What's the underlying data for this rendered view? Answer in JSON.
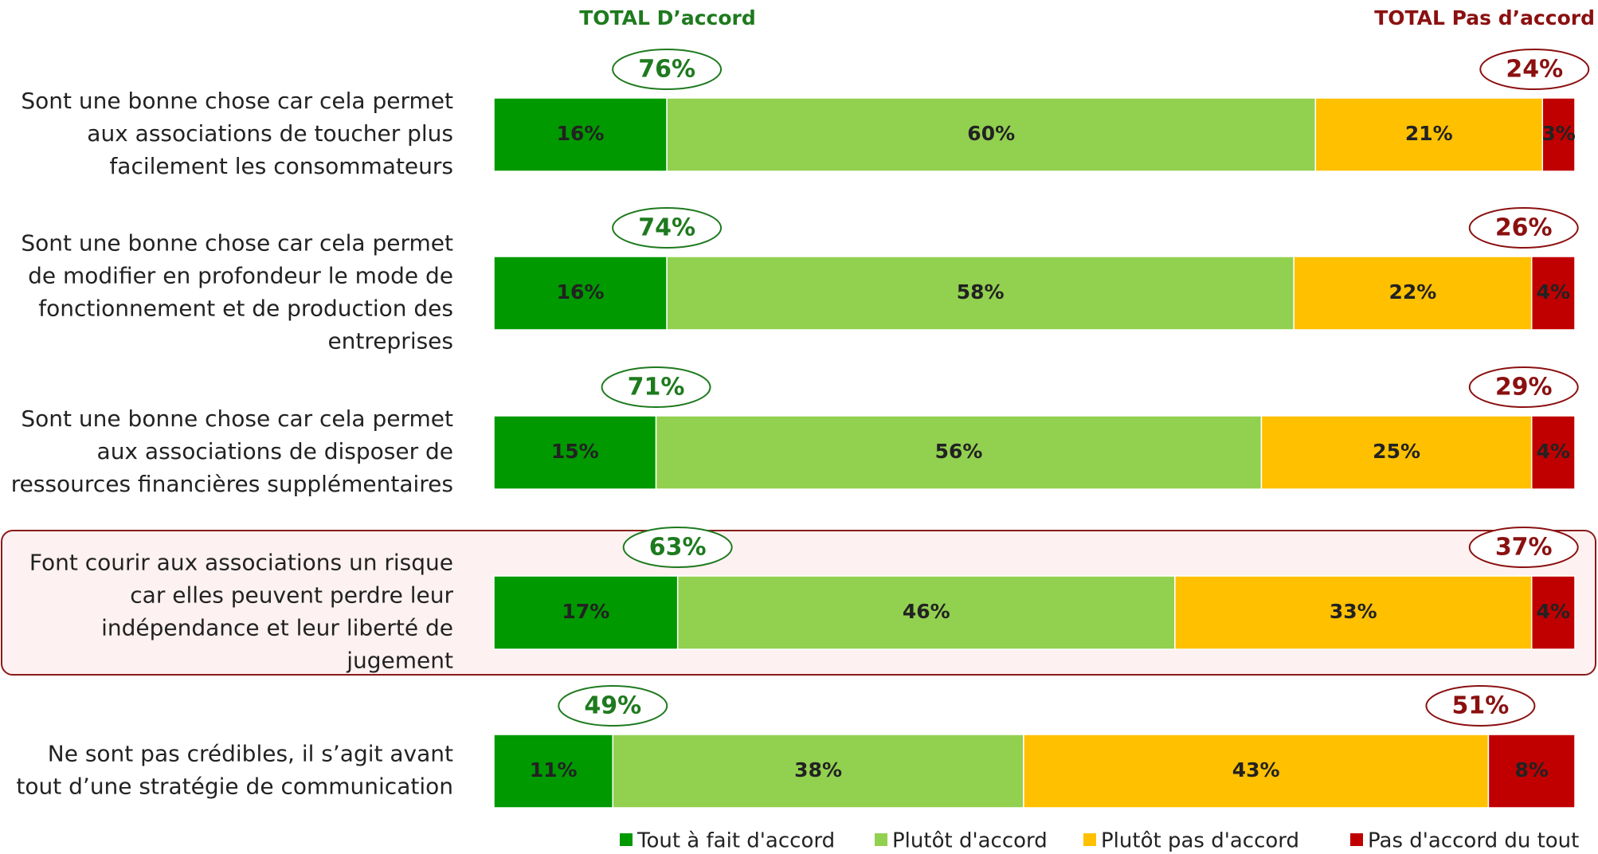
{
  "chart_data": {
    "type": "stacked-bar-horizontal",
    "agree_header": "TOTAL D’accord",
    "disagree_header": "TOTAL Pas d’accord",
    "categories": [
      [
        "Sont une bonne chose car cela permet",
        "aux associations de toucher plus",
        "facilement les consommateurs"
      ],
      [
        "Sont une bonne chose car cela permet",
        "de modifier en profondeur le mode de",
        "fonctionnement et de production des",
        "entreprises"
      ],
      [
        "Sont une bonne chose car cela permet",
        "aux associations de disposer de",
        "ressources financières supplémentaires"
      ],
      [
        "Font courir aux associations un risque",
        "car elles peuvent perdre leur",
        "indépendance et leur liberté de",
        "jugement"
      ],
      [
        "Ne sont pas crédibles, il s’agit avant",
        "tout d’une stratégie de communication"
      ]
    ],
    "series": [
      {
        "name": "Tout à fait d'accord",
        "color": "#009900",
        "values": [
          16,
          16,
          15,
          17,
          11
        ],
        "value_labels": [
          "16%",
          "16%",
          "15%",
          "17%",
          "11%"
        ]
      },
      {
        "name": "Plutôt d'accord",
        "color": "#92d050",
        "values": [
          60,
          58,
          56,
          46,
          38
        ],
        "value_labels": [
          "60%",
          "58%",
          "56%",
          "46%",
          "38%"
        ]
      },
      {
        "name": "Plutôt pas d'accord",
        "color": "#ffc000",
        "values": [
          21,
          22,
          25,
          33,
          43
        ],
        "value_labels": [
          "21%",
          "22%",
          "25%",
          "33%",
          "43%"
        ]
      },
      {
        "name": "Pas d'accord du tout",
        "color": "#c00000",
        "values": [
          3,
          4,
          4,
          4,
          8
        ],
        "value_labels": [
          "3%",
          "4%",
          "4%",
          "4%",
          "8%"
        ]
      }
    ],
    "total_agree": {
      "color": "#1e7a1e",
      "values": [
        76,
        74,
        71,
        63,
        49
      ],
      "value_labels": [
        "76%",
        "74%",
        "71%",
        "63%",
        "49%"
      ]
    },
    "total_disagree": {
      "color": "#8b1010",
      "values": [
        24,
        26,
        29,
        37,
        51
      ],
      "value_labels": [
        "24%",
        "26%",
        "29%",
        "37%",
        "51%"
      ]
    },
    "xlim": [
      0,
      100
    ]
  }
}
